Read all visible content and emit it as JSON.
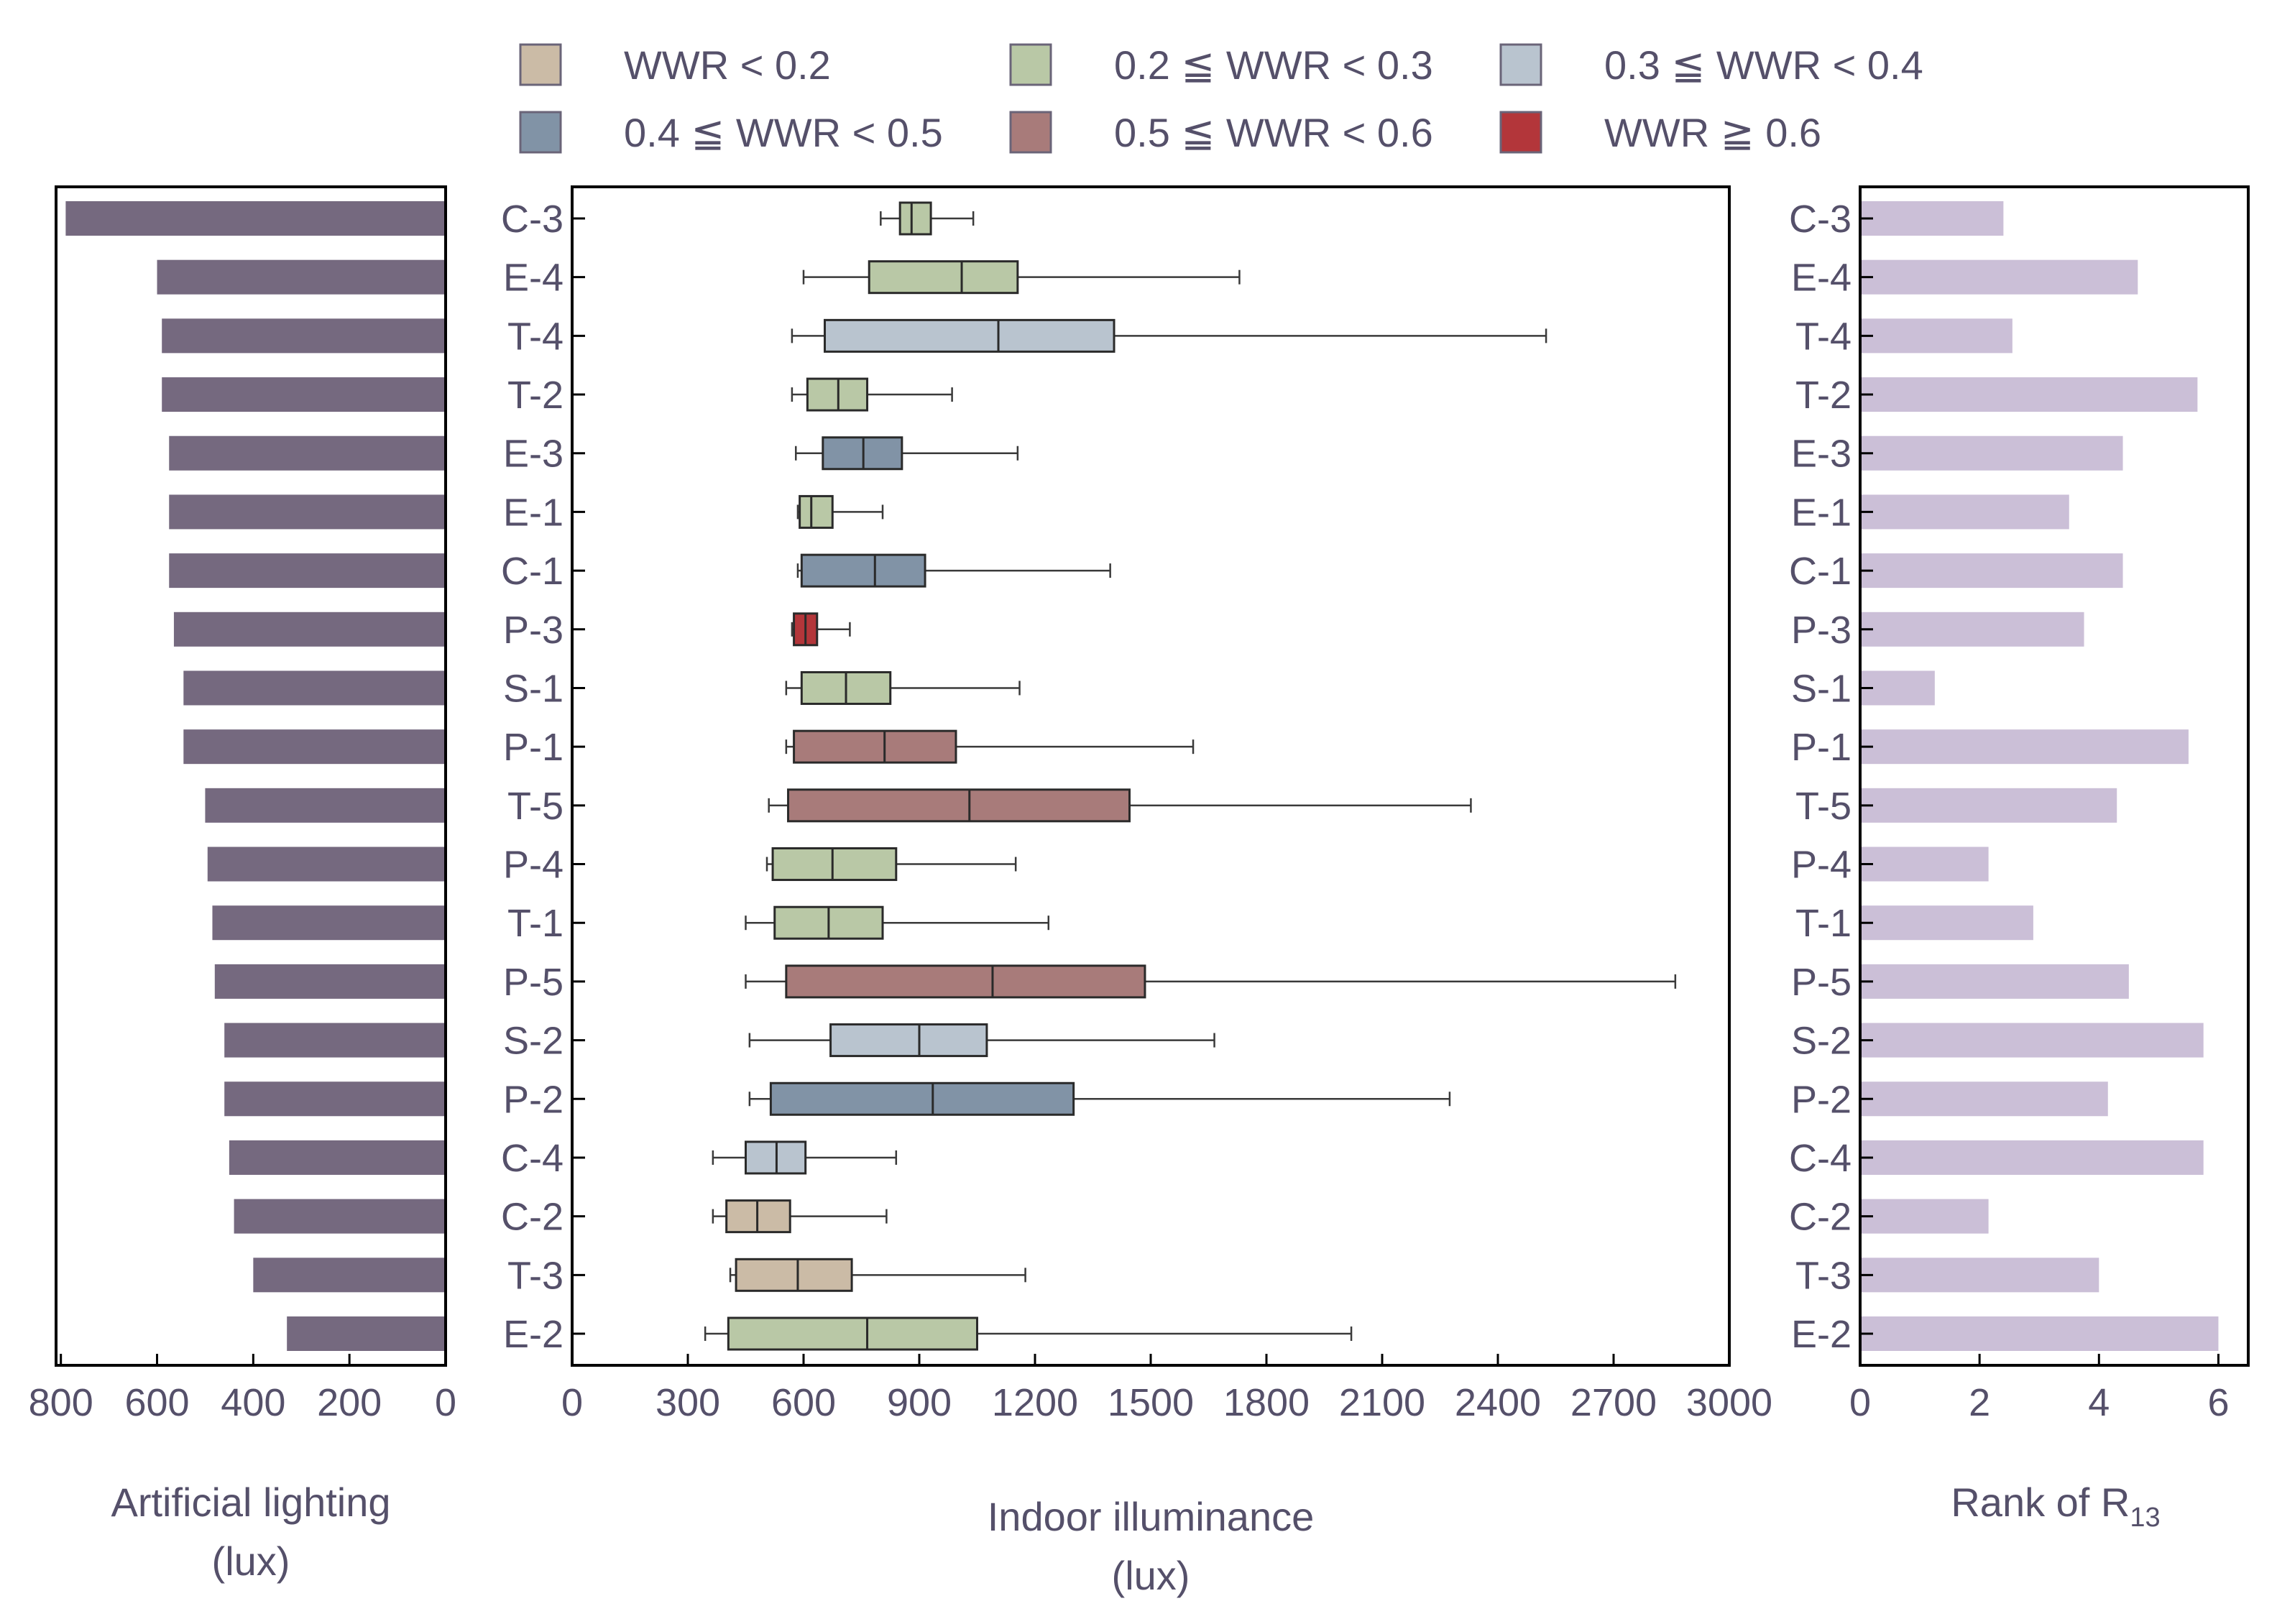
{
  "chart_data": {
    "type": "boxplot-with-bars",
    "categories": [
      "C-3",
      "E-4",
      "T-4",
      "T-2",
      "E-3",
      "E-1",
      "C-1",
      "P-3",
      "S-1",
      "P-1",
      "T-5",
      "P-4",
      "T-1",
      "P-5",
      "S-2",
      "P-2",
      "C-4",
      "C-2",
      "T-3",
      "E-2"
    ],
    "legend": [
      {
        "label": "WWR < 0.2",
        "color": "#cbbba6"
      },
      {
        "label": "0.2 ≦ WWR < 0.3",
        "color": "#b9c8a6"
      },
      {
        "label": "0.3 ≦ WWR < 0.4",
        "color": "#b9c4cf"
      },
      {
        "label": "0.4 ≦ WWR < 0.5",
        "color": "#8193a6"
      },
      {
        "label": "0.5 ≦ WWR < 0.6",
        "color": "#a87b7a"
      },
      {
        "label": "WWR ≧ 0.6",
        "color": "#b3363a"
      }
    ],
    "artificial_lighting": {
      "xlabel_line1": "Artificial lighting",
      "xlabel_line2": "(lux)",
      "ticks": [
        "800",
        "600",
        "400",
        "200",
        "0"
      ],
      "xlim": [
        0,
        810
      ],
      "color": "#75697f",
      "values": [
        790,
        600,
        590,
        590,
        575,
        575,
        575,
        565,
        545,
        545,
        500,
        495,
        485,
        480,
        460,
        460,
        450,
        440,
        400,
        330
      ]
    },
    "indoor_illuminance": {
      "xlabel_line1": "Indoor illuminance",
      "xlabel_line2": "(lux)",
      "ticks": [
        "0",
        "300",
        "600",
        "900",
        "1200",
        "1500",
        "1800",
        "2100",
        "2400",
        "2700",
        "3000"
      ],
      "xlim": [
        0,
        3000
      ],
      "boxes": [
        {
          "min": 800,
          "q1": 850,
          "median": 880,
          "q3": 930,
          "max": 1040,
          "wwr": 1
        },
        {
          "min": 600,
          "q1": 770,
          "median": 1010,
          "q3": 1155,
          "max": 1730,
          "wwr": 1
        },
        {
          "min": 570,
          "q1": 655,
          "median": 1105,
          "q3": 1405,
          "max": 2525,
          "wwr": 2
        },
        {
          "min": 570,
          "q1": 610,
          "median": 690,
          "q3": 765,
          "max": 985,
          "wwr": 1
        },
        {
          "min": 580,
          "q1": 650,
          "median": 755,
          "q3": 855,
          "max": 1155,
          "wwr": 3
        },
        {
          "min": 585,
          "q1": 590,
          "median": 620,
          "q3": 675,
          "max": 805,
          "wwr": 1
        },
        {
          "min": 585,
          "q1": 595,
          "median": 785,
          "q3": 915,
          "max": 1395,
          "wwr": 3
        },
        {
          "min": 570,
          "q1": 575,
          "median": 605,
          "q3": 635,
          "max": 720,
          "wwr": 5
        },
        {
          "min": 555,
          "q1": 595,
          "median": 710,
          "q3": 825,
          "max": 1160,
          "wwr": 1
        },
        {
          "min": 555,
          "q1": 575,
          "median": 810,
          "q3": 995,
          "max": 1610,
          "wwr": 4
        },
        {
          "min": 510,
          "q1": 560,
          "median": 1030,
          "q3": 1445,
          "max": 2330,
          "wwr": 4
        },
        {
          "min": 505,
          "q1": 520,
          "median": 675,
          "q3": 840,
          "max": 1150,
          "wwr": 1
        },
        {
          "min": 450,
          "q1": 525,
          "median": 665,
          "q3": 805,
          "max": 1235,
          "wwr": 1
        },
        {
          "min": 450,
          "q1": 555,
          "median": 1090,
          "q3": 1485,
          "max": 2860,
          "wwr": 4
        },
        {
          "min": 460,
          "q1": 670,
          "median": 900,
          "q3": 1075,
          "max": 1665,
          "wwr": 2
        },
        {
          "min": 460,
          "q1": 515,
          "median": 935,
          "q3": 1300,
          "max": 2275,
          "wwr": 3
        },
        {
          "min": 365,
          "q1": 450,
          "median": 530,
          "q3": 605,
          "max": 840,
          "wwr": 2
        },
        {
          "min": 365,
          "q1": 400,
          "median": 480,
          "q3": 565,
          "max": 815,
          "wwr": 0
        },
        {
          "min": 410,
          "q1": 425,
          "median": 585,
          "q3": 725,
          "max": 1175,
          "wwr": 0
        },
        {
          "min": 345,
          "q1": 405,
          "median": 765,
          "q3": 1050,
          "max": 2020,
          "wwr": 1
        }
      ]
    },
    "rank": {
      "xlabel_main": "Rank of R",
      "xlabel_sub": "13",
      "ticks": [
        "0",
        "2",
        "4",
        "6"
      ],
      "xlim": [
        0,
        6.5
      ],
      "color": "#cbbfd7",
      "values": [
        2.4,
        4.65,
        2.55,
        5.65,
        4.4,
        3.5,
        4.4,
        3.75,
        1.25,
        5.5,
        4.3,
        2.15,
        2.9,
        4.5,
        5.75,
        4.15,
        5.75,
        2.15,
        4.0,
        6.0
      ]
    }
  }
}
